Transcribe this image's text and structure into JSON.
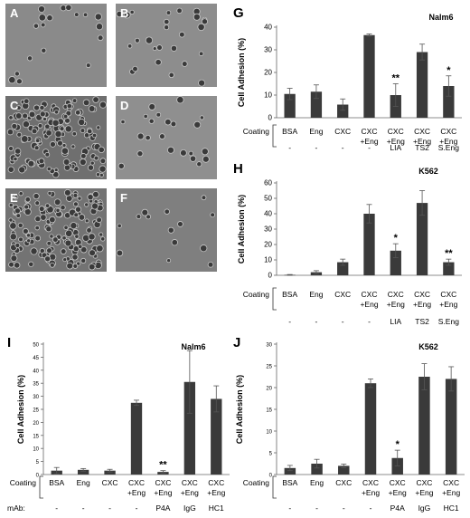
{
  "panels": {
    "micro": [
      {
        "label": "A",
        "density": 18,
        "tone": "#8a8a8a"
      },
      {
        "label": "B",
        "density": 26,
        "tone": "#8d8d8d"
      },
      {
        "label": "C",
        "density": 140,
        "tone": "#6f6f6f"
      },
      {
        "label": "D",
        "density": 22,
        "tone": "#8f8f8f"
      },
      {
        "label": "E",
        "density": 160,
        "tone": "#737373"
      },
      {
        "label": "F",
        "density": 14,
        "tone": "#7f7f7f"
      }
    ],
    "chart_letters": {
      "G": "G",
      "H": "H",
      "I": "I",
      "J": "J"
    }
  },
  "chart_data": [
    {
      "id": "G",
      "type": "bar",
      "title": "Nalm6",
      "ylabel": "Cell Adhesion (%)",
      "ylim": [
        0,
        40
      ],
      "yticks": [
        0,
        10,
        20,
        30,
        40
      ],
      "categories": [
        "BSA",
        "Eng",
        "CXC",
        "CXC\n+Eng",
        "CXC\n+Eng",
        "CXC\n+Eng",
        "CXC\n+Eng"
      ],
      "values": [
        10.5,
        11.5,
        5.8,
        36.5,
        10,
        29,
        14
      ],
      "errors": [
        2.5,
        3,
        2.5,
        0.5,
        5,
        3.5,
        4.5
      ],
      "sig": [
        "",
        "",
        "",
        "",
        "**",
        "",
        "*"
      ],
      "row_label": "Coating",
      "sublabels": [
        "-",
        "-",
        "-",
        "-",
        "LIA",
        "TS2",
        "S.Eng"
      ],
      "sub_row_label": ""
    },
    {
      "id": "H",
      "type": "bar",
      "title": "K562",
      "ylabel": "Cell  Adhesion (%)",
      "ylim": [
        0,
        60
      ],
      "yticks": [
        0,
        10,
        20,
        30,
        40,
        50,
        60
      ],
      "categories": [
        "BSA",
        "Eng",
        "CXC",
        "CXC\n+Eng",
        "CXC\n+Eng",
        "CXC\n+Eng",
        "CXC\n+Eng"
      ],
      "values": [
        0.3,
        2,
        8.5,
        40,
        16,
        47,
        8.5
      ],
      "errors": [
        0.2,
        1,
        2,
        6,
        4.5,
        8,
        2
      ],
      "sig": [
        "",
        "",
        "",
        "",
        "*",
        "",
        "**"
      ],
      "row_label": "Coating",
      "sublabels": [
        "-",
        "-",
        "-",
        "-",
        "LIA",
        "TS2",
        "S.Eng"
      ],
      "sub_row_label": ""
    },
    {
      "id": "I",
      "type": "bar",
      "title": "Nalm6",
      "ylabel": "Cell Adhesion (%)",
      "ylim": [
        0,
        50
      ],
      "yticks": [
        0,
        5,
        10,
        15,
        20,
        25,
        30,
        35,
        40,
        45,
        50
      ],
      "categories": [
        "BSA",
        "Eng",
        "CXC",
        "CXC\n+Eng",
        "CXC\n+Eng",
        "CXC\n+Eng",
        "CXC\n+Eng"
      ],
      "values": [
        1.5,
        1.8,
        1.5,
        27.5,
        1,
        35.5,
        29
      ],
      "errors": [
        1.2,
        0.5,
        0.5,
        1,
        0.5,
        12,
        5
      ],
      "sig": [
        "",
        "",
        "",
        "",
        "**",
        "",
        ""
      ],
      "row_label": "Coating",
      "sublabels": [
        "-",
        "-",
        "-",
        "-",
        "P4A",
        "IgG",
        "HC1"
      ],
      "sub_row_label": "mAb:"
    },
    {
      "id": "J",
      "type": "bar",
      "title": "K562",
      "ylabel": "Cell Adhesion (%)",
      "ylim": [
        0,
        30
      ],
      "yticks": [
        0,
        5,
        10,
        15,
        20,
        25,
        30
      ],
      "categories": [
        "BSA",
        "Eng",
        "CXC",
        "CXC\n+Eng",
        "CXC\n+Eng",
        "CXC\n+Eng",
        "CXC\n+Eng"
      ],
      "values": [
        1.5,
        2.5,
        2,
        21,
        3.8,
        22.5,
        22
      ],
      "errors": [
        0.6,
        1,
        0.4,
        1,
        1.8,
        3,
        2.8
      ],
      "sig": [
        "",
        "",
        "",
        "",
        "*",
        "",
        ""
      ],
      "row_label": "Coating",
      "sublabels": [
        "-",
        "-",
        "-",
        "-",
        "P4A",
        "IgG",
        "HC1"
      ],
      "sub_row_label": ""
    }
  ]
}
